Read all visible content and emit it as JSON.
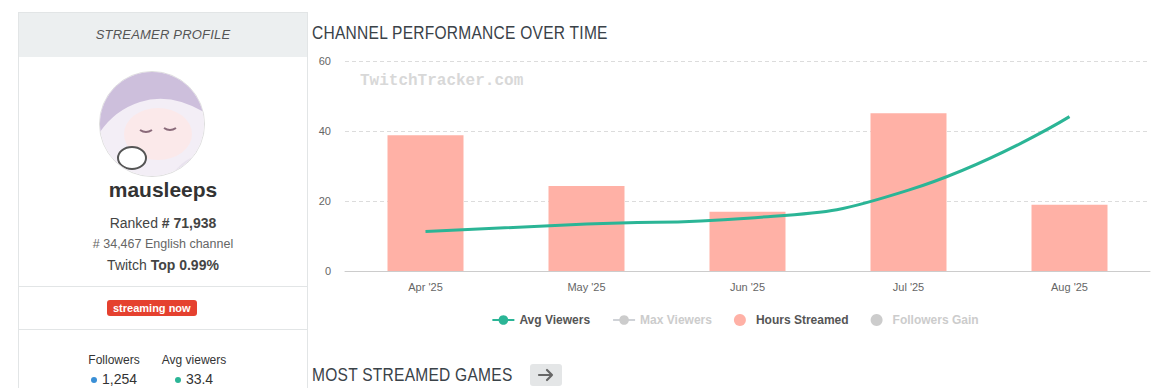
{
  "profile": {
    "header": "STREAMER PROFILE",
    "name": "mausleeps",
    "rank_label": "Ranked",
    "rank": "# 71,938",
    "english_rank": "# 34,467",
    "english_label": "English channel",
    "top_label": "Twitch",
    "top": "Top 0.99%",
    "status": "streaming now",
    "stats": [
      {
        "label": "Followers",
        "value": "1,254",
        "color": "#3a8fd6"
      },
      {
        "label": "Avg viewers",
        "value": "33.4",
        "color": "#2bb596"
      }
    ]
  },
  "sections": [
    "CHANNEL PERFORMANCE OVER TIME",
    "MOST STREAMED GAMES"
  ],
  "chart_data": {
    "type": "bar",
    "annotation": "TwitchTracker.com",
    "categories": [
      "Apr '25",
      "May '25",
      "Jun '25",
      "Jul '25",
      "Aug '25"
    ],
    "series": [
      {
        "name": "Avg Viewers",
        "type": "line",
        "color": "#2bb596",
        "values": [
          11.3,
          13.4,
          15.1,
          23.1,
          44.1
        ]
      },
      {
        "name": "Max Viewers",
        "type": "line",
        "values": [
          null,
          null,
          null,
          null,
          null
        ]
      },
      {
        "name": "Hours Streamed",
        "type": "bar",
        "color": "#ffb1a6",
        "values": [
          38.8,
          24.3,
          16.9,
          45.1,
          18.9
        ]
      },
      {
        "name": "Followers Gain",
        "type": "bar",
        "values": [
          null,
          null,
          null,
          null,
          null
        ]
      }
    ],
    "ylim": [
      0,
      60
    ],
    "yticks": [
      0,
      20,
      40,
      60
    ],
    "grid": true,
    "legend": "bottom"
  }
}
